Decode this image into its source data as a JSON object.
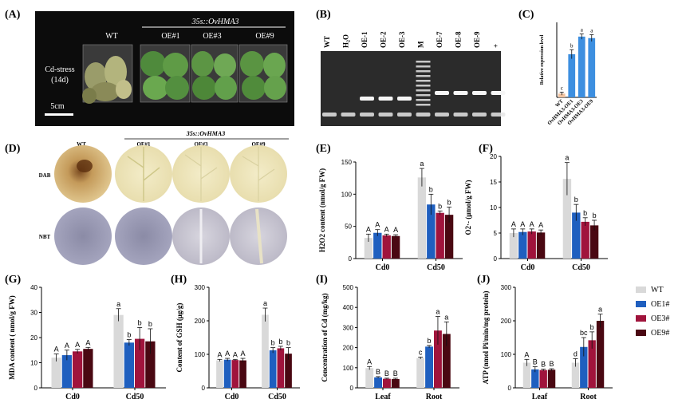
{
  "colors": {
    "WT": "#d9d9d9",
    "OE1": "#1f5fbf",
    "OE3": "#a0143c",
    "OE9": "#4a0812",
    "pcr": "#f2c3a0",
    "errorbar": "#111111",
    "axis": "#000000"
  },
  "panelA": {
    "label": "(A)",
    "transgene": "35s::OvHMA3",
    "lines": [
      "WT",
      "OE#1",
      "OE#3",
      "OE#9"
    ],
    "stress_line1": "Cd-stress",
    "stress_line2": "(14d)",
    "scalebar": "5cm"
  },
  "panelB": {
    "label": "(B)",
    "lanes": [
      "WT",
      "H2O",
      "OE-1",
      "OE-2",
      "OE-3",
      "M",
      "OE-7",
      "OE-8",
      "OE-9",
      "+"
    ]
  },
  "panelD": {
    "label": "(D)",
    "transgene": "35s::OvHMA3",
    "columns": [
      "WT",
      "OE#1",
      "OE#3",
      "OE#9"
    ],
    "rows": [
      "DAB",
      "NBT"
    ]
  },
  "legend": [
    "WT",
    "OE1#",
    "OE3#",
    "OE9#"
  ],
  "chart_data": [
    {
      "id": "C",
      "type": "bar",
      "label": "(C)",
      "ylabel": "Relative expression level",
      "categories": [
        "WT",
        "OvHMA3-OE1",
        "OvHMA3-OE3",
        "OvHMA3-OE9"
      ],
      "values": [
        1,
        11.5,
        16.2,
        15.8
      ],
      "errors": [
        0.4,
        1.2,
        0.7,
        0.9
      ],
      "sig": [
        "c",
        "b",
        "a",
        "a"
      ],
      "ylim": [
        0,
        20
      ],
      "grid": false
    },
    {
      "id": "E",
      "type": "bar",
      "label": "(E)",
      "ylabel": "H2O2 content (nmol/g FW)",
      "categories": [
        "Cd0",
        "Cd50"
      ],
      "series": [
        {
          "name": "WT",
          "values": [
            32,
            126
          ],
          "errors": [
            6,
            14
          ]
        },
        {
          "name": "OE1#",
          "values": [
            40,
            84
          ],
          "errors": [
            5,
            16
          ]
        },
        {
          "name": "OE3#",
          "values": [
            36,
            71
          ],
          "errors": [
            2,
            3
          ]
        },
        {
          "name": "OE9#",
          "values": [
            35,
            68
          ],
          "errors": [
            2,
            12
          ]
        }
      ],
      "sig": [
        [
          "A",
          "A",
          "A",
          "A"
        ],
        [
          "a",
          "b",
          "b",
          "b"
        ]
      ],
      "ylim": [
        0,
        150
      ],
      "yticks": [
        0,
        50,
        100,
        150
      ],
      "grid": false
    },
    {
      "id": "F",
      "type": "bar",
      "label": "(F)",
      "ylabel": "O2·- (μmol/g FW)",
      "categories": [
        "Cd0",
        "Cd50"
      ],
      "series": [
        {
          "name": "WT",
          "values": [
            5.0,
            15.6
          ],
          "errors": [
            0.8,
            3.2
          ]
        },
        {
          "name": "OE1#",
          "values": [
            5.2,
            9.0
          ],
          "errors": [
            0.6,
            1.6
          ]
        },
        {
          "name": "OE3#",
          "values": [
            5.3,
            7.2
          ],
          "errors": [
            0.5,
            0.8
          ]
        },
        {
          "name": "OE9#",
          "values": [
            5.1,
            6.5
          ],
          "errors": [
            0.5,
            1.0
          ]
        }
      ],
      "sig": [
        [
          "A",
          "A",
          "A",
          "A"
        ],
        [
          "a",
          "b",
          "b",
          "b"
        ]
      ],
      "ylim": [
        0,
        20
      ],
      "yticks": [
        0,
        5,
        10,
        15,
        20
      ],
      "grid": false
    },
    {
      "id": "G",
      "type": "bar",
      "label": "(G)",
      "ylabel": "MDA content ( nmol/g FW)",
      "categories": [
        "Cd0",
        "Cd50"
      ],
      "series": [
        {
          "name": "WT",
          "values": [
            12,
            29
          ],
          "errors": [
            1.5,
            2.5
          ]
        },
        {
          "name": "OE1#",
          "values": [
            13,
            18
          ],
          "errors": [
            2,
            1.2
          ]
        },
        {
          "name": "OE3#",
          "values": [
            14.5,
            19.5
          ],
          "errors": [
            0.8,
            4.5
          ]
        },
        {
          "name": "OE9#",
          "values": [
            15.5,
            18.5
          ],
          "errors": [
            0.6,
            5.0
          ]
        }
      ],
      "sig": [
        [
          "A",
          "A",
          "A",
          "A"
        ],
        [
          "a",
          "b",
          "b",
          "b"
        ]
      ],
      "ylim": [
        0,
        40
      ],
      "yticks": [
        0,
        10,
        20,
        30,
        40
      ],
      "grid": false
    },
    {
      "id": "H",
      "type": "bar",
      "label": "(H)",
      "ylabel": "Content of GSH  (μg/g)",
      "categories": [
        "Cd0",
        "Cd50"
      ],
      "series": [
        {
          "name": "WT",
          "values": [
            82,
            218
          ],
          "errors": [
            3,
            20
          ]
        },
        {
          "name": "OE1#",
          "values": [
            84,
            112
          ],
          "errors": [
            4,
            8
          ]
        },
        {
          "name": "OE3#",
          "values": [
            83,
            118
          ],
          "errors": [
            2,
            6
          ]
        },
        {
          "name": "OE9#",
          "values": [
            82,
            102
          ],
          "errors": [
            6,
            18
          ]
        }
      ],
      "sig": [
        [
          "A",
          "A",
          "A",
          "A"
        ],
        [
          "a",
          "b",
          "b",
          "b"
        ]
      ],
      "ylim": [
        0,
        300
      ],
      "yticks": [
        0,
        100,
        200,
        300
      ],
      "grid": false
    },
    {
      "id": "I",
      "type": "bar",
      "label": "(I)",
      "ylabel": "Concentration of Cd (mg/kg)",
      "categories": [
        "Leaf",
        "Root"
      ],
      "series": [
        {
          "name": "WT",
          "values": [
            98,
            148
          ],
          "errors": [
            8,
            5
          ]
        },
        {
          "name": "OE1#",
          "values": [
            52,
            205
          ],
          "errors": [
            4,
            6
          ]
        },
        {
          "name": "OE3#",
          "values": [
            45,
            285
          ],
          "errors": [
            3,
            70
          ]
        },
        {
          "name": "OE9#",
          "values": [
            44,
            268
          ],
          "errors": [
            4,
            60
          ]
        }
      ],
      "sig": [
        [
          "A",
          "B",
          "B",
          "B"
        ],
        [
          "c",
          "b",
          "a",
          "a"
        ]
      ],
      "ylim": [
        0,
        500
      ],
      "yticks": [
        0,
        100,
        200,
        300,
        400,
        500
      ],
      "grid": false
    },
    {
      "id": "J",
      "type": "bar",
      "label": "(J)",
      "ylabel": "ATP (nmol Pi/min/mg protein)",
      "categories": [
        "Leaf",
        "Root"
      ],
      "series": [
        {
          "name": "WT",
          "values": [
            75,
            75
          ],
          "errors": [
            10,
            12
          ]
        },
        {
          "name": "OE1#",
          "values": [
            55,
            122
          ],
          "errors": [
            8,
            28
          ]
        },
        {
          "name": "OE3#",
          "values": [
            53,
            142
          ],
          "errors": [
            3,
            25
          ]
        },
        {
          "name": "OE9#",
          "values": [
            54,
            200
          ],
          "errors": [
            3,
            20
          ]
        }
      ],
      "sig": [
        [
          "A",
          "B",
          "B",
          "B"
        ],
        [
          "d",
          "bc",
          "b",
          "a"
        ]
      ],
      "ylim": [
        0,
        300
      ],
      "yticks": [
        0,
        100,
        200,
        300
      ],
      "grid": false
    }
  ]
}
